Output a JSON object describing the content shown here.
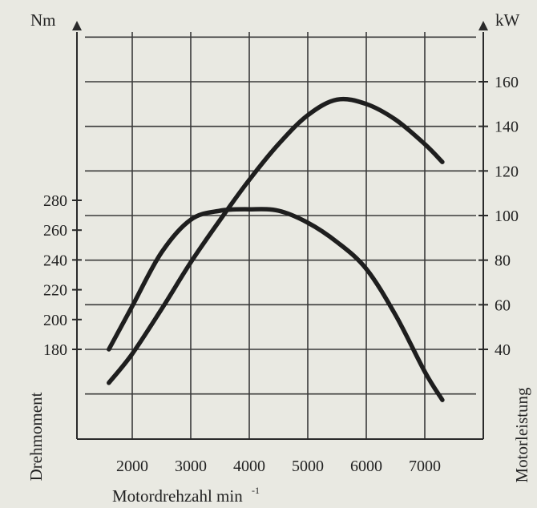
{
  "chart_data": {
    "type": "line",
    "x_ticks": [
      2000,
      3000,
      4000,
      5000,
      6000,
      7000
    ],
    "y_left_ticks": [
      180,
      200,
      220,
      240,
      260,
      280
    ],
    "y_right_ticks": [
      40,
      60,
      80,
      100,
      120,
      140,
      160
    ],
    "y_left_unit": "Nm",
    "y_right_unit": "kW",
    "y_left_title": "Drehmoment",
    "y_right_title": "Motorleistung",
    "x_title": "Motordrehzahl min",
    "x_title_superscript": "-1",
    "xlim": [
      1000,
      7800
    ],
    "y_left_lim": [
      100,
      340
    ],
    "y_right_lim": [
      0,
      180
    ],
    "grid": true,
    "series": [
      {
        "axis": "left",
        "x": [
          1600,
          2000,
          2500,
          3000,
          3500,
          4000,
          4500,
          5000,
          5500,
          6000,
          6500,
          7000,
          7300
        ],
        "values": [
          180,
          209,
          245,
          267,
          273,
          274,
          273,
          265,
          252,
          234,
          203,
          165,
          146
        ]
      },
      {
        "axis": "right",
        "x": [
          1600,
          2000,
          2500,
          3000,
          3500,
          4000,
          4500,
          5000,
          5500,
          6000,
          6500,
          7000,
          7300
        ],
        "values": [
          25,
          38,
          58,
          79,
          98,
          116,
          132,
          145,
          152,
          150,
          143,
          132,
          124
        ]
      }
    ]
  }
}
